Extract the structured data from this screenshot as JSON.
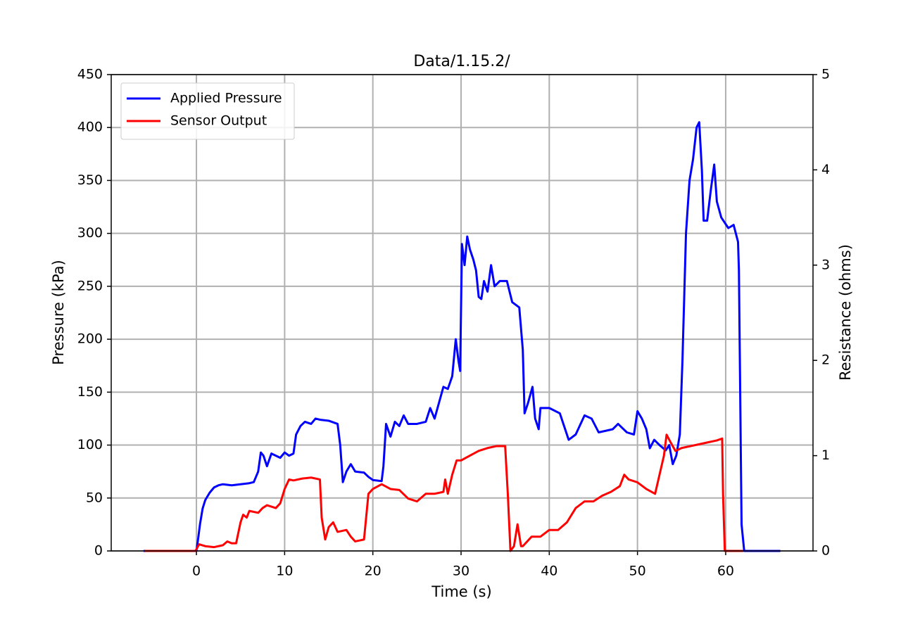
{
  "chart_data": {
    "type": "line",
    "title": "Data/1.15.2/",
    "x_label": "Time (s)",
    "y_label": "Pressure (kPa)",
    "y2_label": "Resistance (ohms)",
    "xlim": [
      -9.66,
      69.9
    ],
    "xticks": [
      0,
      10,
      20,
      30,
      40,
      50,
      60
    ],
    "ylim": [
      0,
      450
    ],
    "yticks": [
      0,
      50,
      100,
      150,
      200,
      250,
      300,
      350,
      400,
      450
    ],
    "y2lim": [
      0,
      5
    ],
    "y2ticks": [
      0,
      1,
      2,
      3,
      4,
      5
    ],
    "grid": true,
    "legend": "upper left",
    "series": [
      {
        "name": "Applied Pressure",
        "color": "#0000ff",
        "axis": "y",
        "x": [
          -6,
          0,
          0.2,
          0.4,
          0.7,
          1,
          1.5,
          2,
          2.5,
          3,
          4,
          5,
          6,
          6.5,
          7,
          7.3,
          7.6,
          8,
          8.5,
          9,
          9.5,
          10,
          10.5,
          11,
          11.3,
          11.8,
          12.3,
          13,
          13.5,
          14,
          15,
          16,
          16.3,
          16.6,
          17,
          17.5,
          18,
          19,
          19.5,
          20,
          21,
          21.2,
          21.5,
          22,
          22.5,
          23,
          23.5,
          24,
          25,
          26,
          26.5,
          27,
          27.5,
          28,
          28.5,
          29,
          29.4,
          29.7,
          29.9,
          30.1,
          30.4,
          30.7,
          31.0,
          31.4,
          31.7,
          32.0,
          32.3,
          32.6,
          33.0,
          33.4,
          33.8,
          34.4,
          35.2,
          35.8,
          36.6,
          37,
          37.2,
          37.6,
          38.1,
          38.4,
          38.8,
          39,
          40,
          41.2,
          41.6,
          42.2,
          43,
          44,
          44.8,
          45.6,
          47.2,
          47.8,
          48.8,
          49.6,
          50,
          50.5,
          51,
          51.4,
          51.9,
          52.5,
          53.2,
          53.6,
          54,
          54.4,
          54.8,
          55.1,
          55.5,
          55.9,
          56.3,
          56.7,
          57,
          57.3,
          57.5,
          57.9,
          58.3,
          58.7,
          59,
          59.5,
          60.3,
          60.9,
          61.4,
          61.5,
          61.8,
          62.1,
          66.2
        ],
        "values": [
          0,
          0,
          12,
          25,
          40,
          48,
          55,
          60,
          62,
          63,
          62,
          63,
          64,
          65,
          75,
          93,
          90,
          80,
          92,
          90,
          88,
          93,
          90,
          92,
          110,
          118,
          122,
          120,
          125,
          124,
          123,
          120,
          100,
          65,
          75,
          82,
          75,
          74,
          70,
          67,
          66,
          80,
          120,
          108,
          122,
          118,
          128,
          120,
          120,
          122,
          135,
          125,
          140,
          155,
          153,
          165,
          200,
          180,
          170,
          290,
          270,
          297,
          285,
          275,
          265,
          240,
          238,
          255,
          245,
          270,
          250,
          255,
          255,
          235,
          230,
          190,
          130,
          140,
          155,
          125,
          115,
          135,
          135,
          130,
          120,
          105,
          110,
          128,
          125,
          112,
          115,
          120,
          112,
          110,
          132,
          125,
          115,
          97,
          105,
          100,
          95,
          100,
          82,
          90,
          110,
          180,
          300,
          350,
          370,
          400,
          405,
          360,
          312,
          312,
          340,
          365,
          330,
          315,
          305,
          308,
          292,
          265,
          25,
          0,
          0
        ]
      },
      {
        "name": "Sensor Output",
        "color": "#ff0000",
        "axis": "y2",
        "x": [
          -5.9,
          -0.1,
          0.3,
          1,
          2,
          3,
          3.5,
          4,
          4.5,
          5,
          5.3,
          5.7,
          6,
          7,
          7.5,
          8,
          9,
          9.5,
          10,
          10.5,
          11,
          12,
          13,
          14,
          14.2,
          14.6,
          15,
          15.5,
          16,
          17,
          17.5,
          18,
          19,
          19.5,
          20,
          21,
          22,
          23,
          24,
          25,
          26,
          27,
          28,
          28.2,
          28.5,
          29,
          29.5,
          30,
          31,
          32,
          33,
          34,
          35,
          35.3,
          35.6,
          36,
          36.4,
          36.8,
          37,
          38,
          39,
          40,
          41,
          42,
          43,
          44,
          45,
          46,
          47,
          48,
          48.5,
          49,
          50,
          51,
          52,
          52.5,
          53,
          53.3,
          53.7,
          54.3,
          55,
          56,
          57,
          58,
          59,
          59.6,
          59.7,
          59.9,
          62
        ],
        "values": [
          0,
          0,
          0.07,
          0.05,
          0.04,
          0.06,
          0.1,
          0.08,
          0.08,
          0.3,
          0.38,
          0.35,
          0.42,
          0.4,
          0.45,
          0.48,
          0.45,
          0.5,
          0.65,
          0.75,
          0.74,
          0.76,
          0.77,
          0.75,
          0.35,
          0.12,
          0.25,
          0.3,
          0.2,
          0.22,
          0.15,
          0.1,
          0.12,
          0.6,
          0.65,
          0.7,
          0.65,
          0.64,
          0.55,
          0.52,
          0.6,
          0.6,
          0.62,
          0.75,
          0.6,
          0.8,
          0.95,
          0.95,
          1.0,
          1.05,
          1.08,
          1.1,
          1.1,
          0.6,
          0,
          0.05,
          0.28,
          0.05,
          0.05,
          0.15,
          0.15,
          0.22,
          0.22,
          0.3,
          0.45,
          0.52,
          0.52,
          0.58,
          0.62,
          0.68,
          0.8,
          0.75,
          0.72,
          0.65,
          0.6,
          0.8,
          1.0,
          1.22,
          1.15,
          1.05,
          1.08,
          1.1,
          1.12,
          1.14,
          1.16,
          1.18,
          0.6,
          0,
          0
        ]
      }
    ]
  }
}
